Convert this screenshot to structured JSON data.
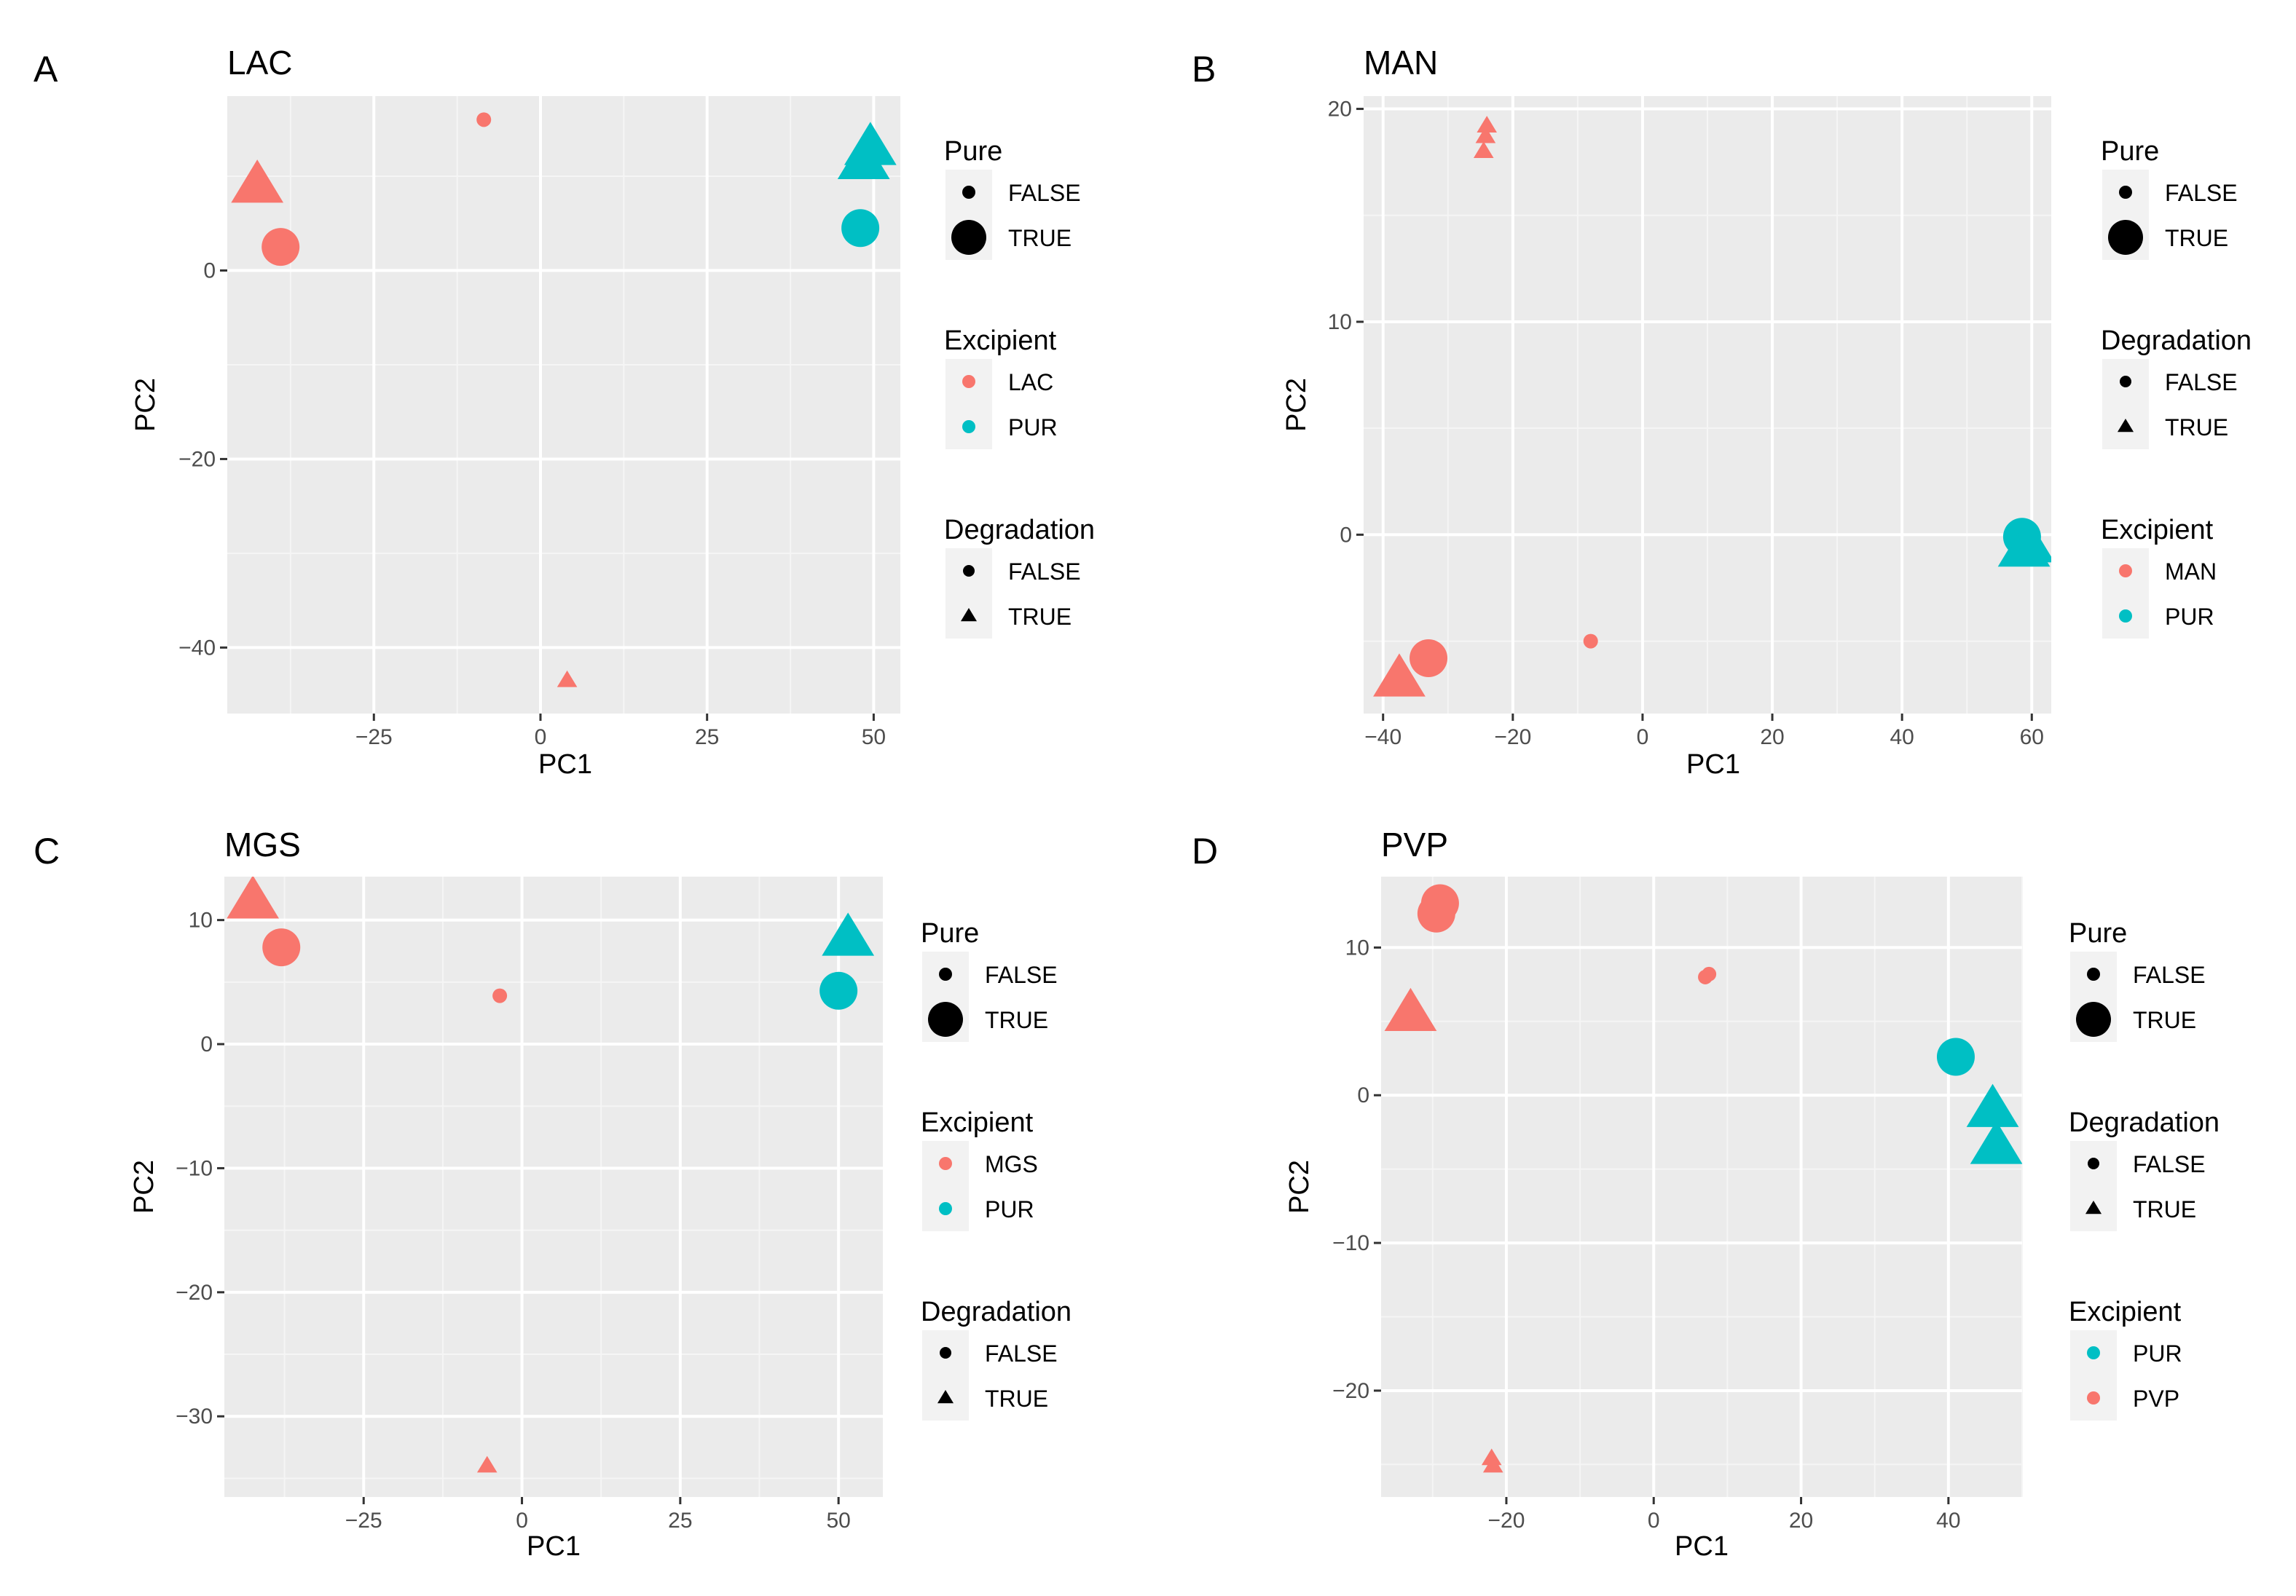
{
  "figure": {
    "description": "PCA score plots"
  },
  "colors": {
    "red": "#F8766D",
    "teal": "#00BFC4",
    "panel_bg": "#EBEBEB",
    "grid_major": "#FFFFFF",
    "grid_minor": "#F5F5F5",
    "tick_text": "#4D4D4D"
  },
  "chart_data": [
    {
      "panel_letter": "A",
      "title": "LAC",
      "type": "scatter",
      "xlabel": "PC1",
      "ylabel": "PC2",
      "xlim": [
        -47,
        54
      ],
      "ylim": [
        -47,
        18.5
      ],
      "xticks": [
        -25,
        0,
        25,
        50
      ],
      "xtick_labels": [
        "-25",
        "0",
        "25",
        "50"
      ],
      "yticks": [
        -40,
        -20,
        0
      ],
      "ytick_labels": [
        "-40",
        "-20",
        "0"
      ],
      "points": [
        {
          "x": -42.5,
          "y": 9.0,
          "excipient": "LAC",
          "pure": true,
          "degradation": true
        },
        {
          "x": -39.0,
          "y": 2.5,
          "excipient": "LAC",
          "pure": true,
          "degradation": false
        },
        {
          "x": -8.5,
          "y": 16.0,
          "excipient": "LAC",
          "pure": false,
          "degradation": false
        },
        {
          "x": 4.0,
          "y": -43.5,
          "excipient": "LAC",
          "pure": false,
          "degradation": true
        },
        {
          "x": 49.5,
          "y": 13.0,
          "excipient": "PUR",
          "pure": true,
          "degradation": true
        },
        {
          "x": 48.5,
          "y": 11.5,
          "excipient": "PUR",
          "pure": true,
          "degradation": true
        },
        {
          "x": 48.0,
          "y": 4.5,
          "excipient": "PUR",
          "pure": true,
          "degradation": false
        }
      ],
      "legends": [
        {
          "title": "Pure",
          "kind": "size",
          "items": [
            {
              "label": "FALSE",
              "shape": "circle",
              "size": "small"
            },
            {
              "label": "TRUE",
              "shape": "circle",
              "size": "large"
            }
          ]
        },
        {
          "title": "Excipient",
          "kind": "color",
          "items": [
            {
              "label": "LAC",
              "color": "#F8766D"
            },
            {
              "label": "PUR",
              "color": "#00BFC4"
            }
          ]
        },
        {
          "title": "Degradation",
          "kind": "shape",
          "items": [
            {
              "label": "FALSE",
              "shape": "circle"
            },
            {
              "label": "TRUE",
              "shape": "triangle"
            }
          ]
        }
      ]
    },
    {
      "panel_letter": "B",
      "title": "MAN",
      "type": "scatter",
      "xlabel": "PC1",
      "ylabel": "PC2",
      "xlim": [
        -43,
        63
      ],
      "ylim": [
        -8.4,
        20.6
      ],
      "xticks": [
        -40,
        -20,
        0,
        20,
        40,
        60
      ],
      "xtick_labels": [
        "-40",
        "-20",
        "0",
        "20",
        "40",
        "60"
      ],
      "yticks": [
        0,
        10,
        20
      ],
      "ytick_labels": [
        "0",
        "10",
        "20"
      ],
      "points": [
        {
          "x": -24.0,
          "y": 19.2,
          "excipient": "MAN",
          "pure": false,
          "degradation": true
        },
        {
          "x": -24.2,
          "y": 18.7,
          "excipient": "MAN",
          "pure": false,
          "degradation": true
        },
        {
          "x": -24.5,
          "y": 18.0,
          "excipient": "MAN",
          "pure": false,
          "degradation": true
        },
        {
          "x": -37.5,
          "y": -6.8,
          "excipient": "MAN",
          "pure": true,
          "degradation": true
        },
        {
          "x": -33.0,
          "y": -5.8,
          "excipient": "MAN",
          "pure": true,
          "degradation": false
        },
        {
          "x": -8.0,
          "y": -5.0,
          "excipient": "MAN",
          "pure": false,
          "degradation": false
        },
        {
          "x": 58.5,
          "y": -0.1,
          "excipient": "PUR",
          "pure": true,
          "degradation": false
        },
        {
          "x": 58.8,
          "y": -0.7,
          "excipient": "PUR",
          "pure": true,
          "degradation": true
        },
        {
          "x": 59.5,
          "y": -0.5,
          "excipient": "PUR",
          "pure": true,
          "degradation": true
        }
      ],
      "legends": [
        {
          "title": "Pure",
          "kind": "size",
          "items": [
            {
              "label": "FALSE",
              "shape": "circle",
              "size": "small"
            },
            {
              "label": "TRUE",
              "shape": "circle",
              "size": "large"
            }
          ]
        },
        {
          "title": "Degradation",
          "kind": "shape",
          "items": [
            {
              "label": "FALSE",
              "shape": "circle"
            },
            {
              "label": "TRUE",
              "shape": "triangle"
            }
          ]
        },
        {
          "title": "Excipient",
          "kind": "color",
          "items": [
            {
              "label": "MAN",
              "color": "#F8766D"
            },
            {
              "label": "PUR",
              "color": "#00BFC4"
            }
          ]
        }
      ]
    },
    {
      "panel_letter": "C",
      "title": "MGS",
      "type": "scatter",
      "xlabel": "PC1",
      "ylabel": "PC2",
      "xlim": [
        -47,
        57
      ],
      "ylim": [
        -36.5,
        13.5
      ],
      "xticks": [
        -25,
        0,
        25,
        50
      ],
      "xtick_labels": [
        "-25",
        "0",
        "25",
        "50"
      ],
      "yticks": [
        -30,
        -20,
        -10,
        0,
        10
      ],
      "ytick_labels": [
        "-30",
        "-20",
        "-10",
        "0",
        "10"
      ],
      "points": [
        {
          "x": -42.5,
          "y": 11.5,
          "excipient": "MGS",
          "pure": true,
          "degradation": true
        },
        {
          "x": -38.0,
          "y": 7.8,
          "excipient": "MGS",
          "pure": true,
          "degradation": false
        },
        {
          "x": -3.5,
          "y": 3.9,
          "excipient": "MGS",
          "pure": false,
          "degradation": false
        },
        {
          "x": -5.5,
          "y": -34.0,
          "excipient": "MGS",
          "pure": false,
          "degradation": true
        },
        {
          "x": 51.5,
          "y": 8.5,
          "excipient": "PUR",
          "pure": true,
          "degradation": true
        },
        {
          "x": 50.0,
          "y": 4.3,
          "excipient": "PUR",
          "pure": true,
          "degradation": false
        }
      ],
      "legends": [
        {
          "title": "Pure",
          "kind": "size",
          "items": [
            {
              "label": "FALSE",
              "shape": "circle",
              "size": "small"
            },
            {
              "label": "TRUE",
              "shape": "circle",
              "size": "large"
            }
          ]
        },
        {
          "title": "Excipient",
          "kind": "color",
          "items": [
            {
              "label": "MGS",
              "color": "#F8766D"
            },
            {
              "label": "PUR",
              "color": "#00BFC4"
            }
          ]
        },
        {
          "title": "Degradation",
          "kind": "shape",
          "items": [
            {
              "label": "FALSE",
              "shape": "circle"
            },
            {
              "label": "TRUE",
              "shape": "triangle"
            }
          ]
        }
      ]
    },
    {
      "panel_letter": "D",
      "title": "PVP",
      "type": "scatter",
      "xlabel": "PC1",
      "ylabel": "PC2",
      "xlim": [
        -37,
        50
      ],
      "ylim": [
        -27.2,
        14.8
      ],
      "xticks": [
        -20,
        0,
        20,
        40
      ],
      "xtick_labels": [
        "-20",
        "0",
        "20",
        "40"
      ],
      "yticks": [
        -20,
        -10,
        0,
        10
      ],
      "ytick_labels": [
        "-20",
        "-10",
        "0",
        "10"
      ],
      "points": [
        {
          "x": -29.0,
          "y": 13.0,
          "excipient": "PVP",
          "pure": true,
          "degradation": false
        },
        {
          "x": -29.5,
          "y": 12.3,
          "excipient": "PVP",
          "pure": true,
          "degradation": false
        },
        {
          "x": -33.0,
          "y": 5.5,
          "excipient": "PVP",
          "pure": true,
          "degradation": true
        },
        {
          "x": 7.0,
          "y": 8.0,
          "excipient": "PVP",
          "pure": false,
          "degradation": false
        },
        {
          "x": 7.5,
          "y": 8.2,
          "excipient": "PVP",
          "pure": false,
          "degradation": false
        },
        {
          "x": -22.0,
          "y": -24.6,
          "excipient": "PVP",
          "pure": false,
          "degradation": true
        },
        {
          "x": -21.8,
          "y": -25.1,
          "excipient": "PVP",
          "pure": false,
          "degradation": true
        },
        {
          "x": 41.0,
          "y": 2.6,
          "excipient": "PUR",
          "pure": true,
          "degradation": false
        },
        {
          "x": 46.0,
          "y": -1.0,
          "excipient": "PUR",
          "pure": true,
          "degradation": true
        },
        {
          "x": 46.5,
          "y": -3.5,
          "excipient": "PUR",
          "pure": true,
          "degradation": true
        }
      ],
      "legends": [
        {
          "title": "Pure",
          "kind": "size",
          "items": [
            {
              "label": "FALSE",
              "shape": "circle",
              "size": "small"
            },
            {
              "label": "TRUE",
              "shape": "circle",
              "size": "large"
            }
          ]
        },
        {
          "title": "Degradation",
          "kind": "shape",
          "items": [
            {
              "label": "FALSE",
              "shape": "circle"
            },
            {
              "label": "TRUE",
              "shape": "triangle"
            }
          ]
        },
        {
          "title": "Excipient",
          "kind": "color",
          "items": [
            {
              "label": "PUR",
              "color": "#00BFC4"
            },
            {
              "label": "PVP",
              "color": "#F8766D"
            }
          ]
        }
      ]
    }
  ]
}
